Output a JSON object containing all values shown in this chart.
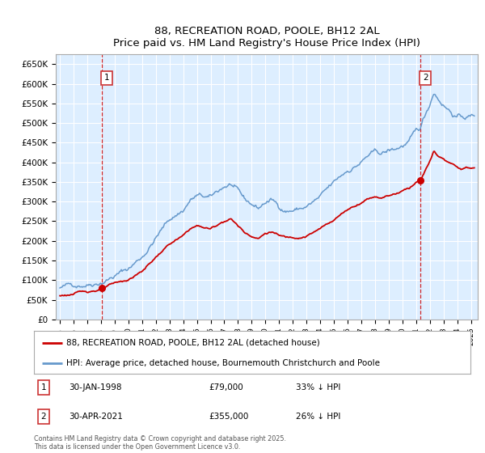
{
  "title": "88, RECREATION ROAD, POOLE, BH12 2AL",
  "subtitle": "Price paid vs. HM Land Registry's House Price Index (HPI)",
  "ylabel_ticks": [
    "£0",
    "£50K",
    "£100K",
    "£150K",
    "£200K",
    "£250K",
    "£300K",
    "£350K",
    "£400K",
    "£450K",
    "£500K",
    "£550K",
    "£600K",
    "£650K"
  ],
  "ylim": [
    0,
    675000
  ],
  "xlim_start": 1994.7,
  "xlim_end": 2025.5,
  "purchase_dates": [
    1998.08,
    2021.33
  ],
  "purchase_prices": [
    79000,
    355000
  ],
  "marker_labels": [
    "1",
    "2"
  ],
  "legend_line1": "88, RECREATION ROAD, POOLE, BH12 2AL (detached house)",
  "legend_line2": "HPI: Average price, detached house, Bournemouth Christchurch and Poole",
  "footer": "Contains HM Land Registry data © Crown copyright and database right 2025.\nThis data is licensed under the Open Government Licence v3.0.",
  "line_color_red": "#cc0000",
  "line_color_blue": "#6699cc",
  "bg_color": "#ddeeff",
  "grid_color": "#ffffff",
  "vline_color": "#cc0000",
  "hpi_seed": 42,
  "red_seed": 123
}
